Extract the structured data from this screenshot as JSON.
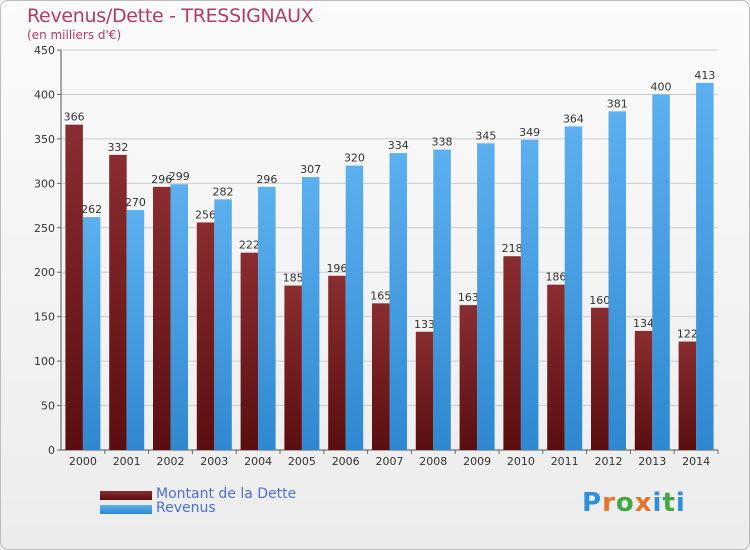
{
  "title": "Revenus/Dette - TRESSIGNAUX",
  "subtitle": "(en milliers d'€)",
  "legend": {
    "dette": "Montant de la Dette",
    "revenus": "Revenus"
  },
  "logo": {
    "letters": [
      "P",
      "r",
      "o",
      "x",
      "i",
      "t",
      "i"
    ],
    "colors": [
      "#2f8fd8",
      "#e8732a",
      "#43a843",
      "#e8732a",
      "#2f8fd8",
      "#43a843",
      "#2f8fd8"
    ]
  },
  "colors": {
    "dette": "#7a1f22",
    "revenus": "#4aa1e6",
    "axis_text": "#333333",
    "grid": "#cccccc"
  },
  "chart_data": {
    "type": "bar",
    "categories": [
      "2000",
      "2001",
      "2002",
      "2003",
      "2004",
      "2005",
      "2006",
      "2007",
      "2008",
      "2009",
      "2010",
      "2011",
      "2012",
      "2013",
      "2014"
    ],
    "series": [
      {
        "name": "Montant de la Dette",
        "values": [
          366,
          332,
          296,
          256,
          222,
          185,
          196,
          165,
          133,
          163,
          218,
          186,
          160,
          134,
          122
        ]
      },
      {
        "name": "Revenus",
        "values": [
          262,
          270,
          299,
          282,
          296,
          307,
          320,
          334,
          338,
          345,
          349,
          364,
          381,
          400,
          413
        ]
      }
    ],
    "ylim": [
      0,
      450
    ],
    "yticks": [
      0,
      50,
      100,
      150,
      200,
      250,
      300,
      350,
      400,
      450
    ],
    "grid": true,
    "legend_position": "bottom-left"
  }
}
